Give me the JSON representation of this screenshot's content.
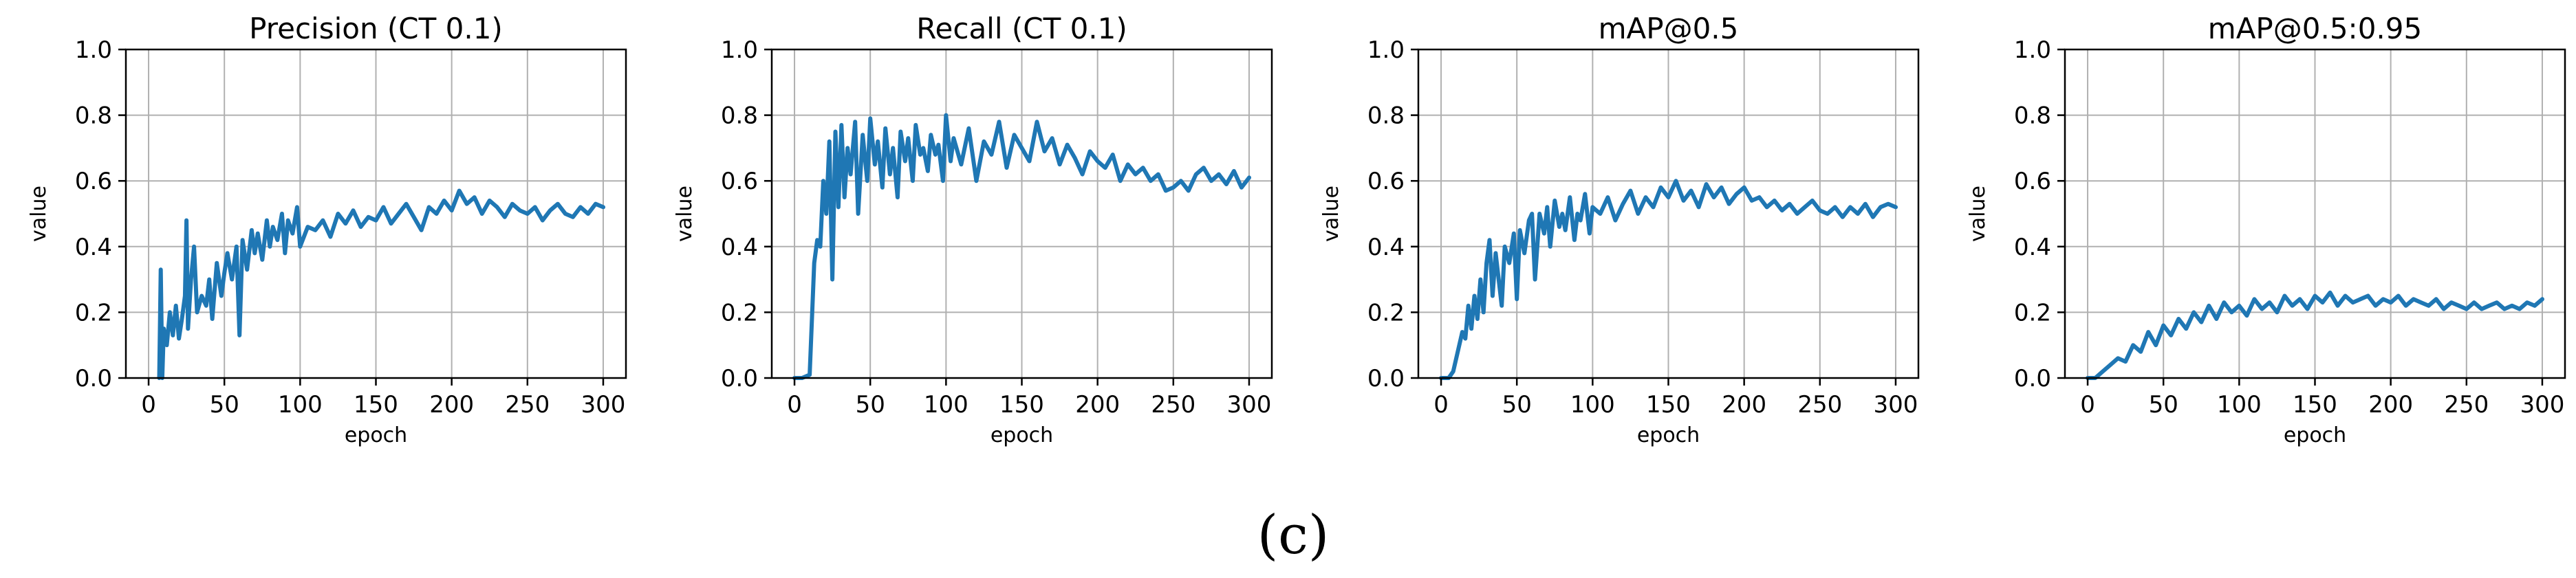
{
  "figure": {
    "caption": "(c)",
    "colors": {
      "line": "#1f77b4",
      "grid": "#b0b0b0",
      "axes": "#000000"
    }
  },
  "chart_data": [
    {
      "type": "line",
      "title": "Precision (CT 0.1)",
      "xlabel": "epoch",
      "ylabel": "value",
      "xlim": [
        -15,
        315
      ],
      "ylim": [
        0,
        1
      ],
      "xticks": [
        0,
        50,
        100,
        150,
        200,
        250,
        300
      ],
      "yticks": [
        0.0,
        0.2,
        0.4,
        0.6,
        0.8,
        1.0
      ],
      "grid": true,
      "series": [
        {
          "name": "Precision",
          "x": [
            7,
            8,
            9,
            10,
            12,
            14,
            16,
            18,
            20,
            22,
            24,
            25,
            26,
            28,
            30,
            32,
            35,
            38,
            40,
            42,
            45,
            48,
            50,
            52,
            55,
            58,
            60,
            62,
            65,
            68,
            70,
            72,
            75,
            78,
            80,
            82,
            85,
            88,
            90,
            92,
            95,
            98,
            100,
            105,
            110,
            115,
            120,
            125,
            130,
            135,
            140,
            145,
            150,
            155,
            160,
            165,
            170,
            175,
            180,
            185,
            190,
            195,
            200,
            205,
            210,
            215,
            220,
            225,
            230,
            235,
            240,
            245,
            250,
            255,
            260,
            265,
            270,
            275,
            280,
            285,
            290,
            295,
            300
          ],
          "y": [
            0.0,
            0.33,
            0.0,
            0.15,
            0.1,
            0.2,
            0.13,
            0.22,
            0.12,
            0.18,
            0.25,
            0.48,
            0.15,
            0.3,
            0.4,
            0.2,
            0.25,
            0.22,
            0.3,
            0.18,
            0.35,
            0.25,
            0.32,
            0.38,
            0.3,
            0.4,
            0.13,
            0.42,
            0.33,
            0.45,
            0.38,
            0.44,
            0.36,
            0.48,
            0.4,
            0.46,
            0.42,
            0.5,
            0.38,
            0.48,
            0.44,
            0.52,
            0.4,
            0.46,
            0.45,
            0.48,
            0.43,
            0.5,
            0.47,
            0.51,
            0.46,
            0.49,
            0.48,
            0.52,
            0.47,
            0.5,
            0.53,
            0.49,
            0.45,
            0.52,
            0.5,
            0.54,
            0.51,
            0.57,
            0.53,
            0.55,
            0.5,
            0.54,
            0.52,
            0.49,
            0.53,
            0.51,
            0.5,
            0.52,
            0.48,
            0.51,
            0.53,
            0.5,
            0.49,
            0.52,
            0.5,
            0.53,
            0.52
          ]
        }
      ]
    },
    {
      "type": "line",
      "title": "Recall (CT 0.1)",
      "xlabel": "epoch",
      "ylabel": "value",
      "xlim": [
        -15,
        315
      ],
      "ylim": [
        0,
        1
      ],
      "xticks": [
        0,
        50,
        100,
        150,
        200,
        250,
        300
      ],
      "yticks": [
        0.0,
        0.2,
        0.4,
        0.6,
        0.8,
        1.0
      ],
      "grid": true,
      "series": [
        {
          "name": "Recall",
          "x": [
            0,
            5,
            10,
            13,
            15,
            17,
            19,
            21,
            23,
            25,
            27,
            29,
            31,
            33,
            35,
            37,
            40,
            42,
            45,
            48,
            50,
            53,
            55,
            58,
            60,
            63,
            65,
            68,
            70,
            73,
            75,
            78,
            80,
            83,
            85,
            88,
            90,
            93,
            95,
            98,
            100,
            103,
            105,
            110,
            115,
            120,
            125,
            130,
            135,
            140,
            145,
            150,
            155,
            160,
            165,
            170,
            175,
            180,
            185,
            190,
            195,
            200,
            205,
            210,
            215,
            220,
            225,
            230,
            235,
            240,
            245,
            250,
            255,
            260,
            265,
            270,
            275,
            280,
            285,
            290,
            295,
            300
          ],
          "y": [
            0.0,
            0.0,
            0.01,
            0.35,
            0.42,
            0.4,
            0.6,
            0.5,
            0.72,
            0.3,
            0.75,
            0.52,
            0.77,
            0.55,
            0.7,
            0.62,
            0.78,
            0.5,
            0.74,
            0.6,
            0.79,
            0.65,
            0.72,
            0.58,
            0.76,
            0.62,
            0.7,
            0.55,
            0.75,
            0.66,
            0.73,
            0.6,
            0.77,
            0.68,
            0.7,
            0.63,
            0.74,
            0.68,
            0.71,
            0.6,
            0.8,
            0.66,
            0.73,
            0.65,
            0.76,
            0.6,
            0.72,
            0.68,
            0.78,
            0.64,
            0.74,
            0.7,
            0.66,
            0.78,
            0.69,
            0.73,
            0.65,
            0.71,
            0.67,
            0.62,
            0.69,
            0.66,
            0.64,
            0.68,
            0.6,
            0.65,
            0.62,
            0.64,
            0.6,
            0.62,
            0.57,
            0.58,
            0.6,
            0.57,
            0.62,
            0.64,
            0.6,
            0.62,
            0.59,
            0.63,
            0.58,
            0.61
          ]
        }
      ]
    },
    {
      "type": "line",
      "title": "mAP@0.5",
      "xlabel": "epoch",
      "ylabel": "value",
      "xlim": [
        -15,
        315
      ],
      "ylim": [
        0,
        1
      ],
      "xticks": [
        0,
        50,
        100,
        150,
        200,
        250,
        300
      ],
      "yticks": [
        0.0,
        0.2,
        0.4,
        0.6,
        0.8,
        1.0
      ],
      "grid": true,
      "series": [
        {
          "name": "mAP@0.5",
          "x": [
            0,
            5,
            8,
            10,
            12,
            14,
            16,
            18,
            20,
            22,
            24,
            26,
            28,
            30,
            32,
            34,
            36,
            38,
            40,
            42,
            45,
            48,
            50,
            52,
            55,
            58,
            60,
            62,
            65,
            68,
            70,
            72,
            75,
            78,
            80,
            82,
            85,
            88,
            90,
            92,
            95,
            98,
            100,
            105,
            110,
            115,
            120,
            125,
            130,
            135,
            140,
            145,
            150,
            155,
            160,
            165,
            170,
            175,
            180,
            185,
            190,
            195,
            200,
            205,
            210,
            215,
            220,
            225,
            230,
            235,
            240,
            245,
            250,
            255,
            260,
            265,
            270,
            275,
            280,
            285,
            290,
            295,
            300
          ],
          "y": [
            0.0,
            0.0,
            0.02,
            0.06,
            0.1,
            0.14,
            0.12,
            0.22,
            0.15,
            0.25,
            0.18,
            0.3,
            0.2,
            0.35,
            0.42,
            0.25,
            0.38,
            0.3,
            0.22,
            0.4,
            0.35,
            0.44,
            0.24,
            0.45,
            0.38,
            0.48,
            0.5,
            0.3,
            0.5,
            0.44,
            0.52,
            0.4,
            0.54,
            0.46,
            0.5,
            0.45,
            0.55,
            0.42,
            0.5,
            0.48,
            0.56,
            0.44,
            0.52,
            0.5,
            0.55,
            0.48,
            0.53,
            0.57,
            0.5,
            0.55,
            0.52,
            0.58,
            0.55,
            0.6,
            0.54,
            0.57,
            0.52,
            0.59,
            0.55,
            0.58,
            0.53,
            0.56,
            0.58,
            0.54,
            0.55,
            0.52,
            0.54,
            0.51,
            0.53,
            0.5,
            0.52,
            0.54,
            0.51,
            0.5,
            0.52,
            0.49,
            0.52,
            0.5,
            0.53,
            0.49,
            0.52,
            0.53,
            0.52
          ]
        }
      ]
    },
    {
      "type": "line",
      "title": "mAP@0.5:0.95",
      "xlabel": "epoch",
      "ylabel": "value",
      "xlim": [
        -15,
        315
      ],
      "ylim": [
        0,
        1
      ],
      "xticks": [
        0,
        50,
        100,
        150,
        200,
        250,
        300
      ],
      "yticks": [
        0.0,
        0.2,
        0.4,
        0.6,
        0.8,
        1.0
      ],
      "grid": true,
      "series": [
        {
          "name": "mAP@0.5:0.95",
          "x": [
            0,
            5,
            10,
            15,
            20,
            25,
            30,
            35,
            40,
            45,
            50,
            55,
            60,
            65,
            70,
            75,
            80,
            85,
            90,
            95,
            100,
            105,
            110,
            115,
            120,
            125,
            130,
            135,
            140,
            145,
            150,
            155,
            160,
            165,
            170,
            175,
            180,
            185,
            190,
            195,
            200,
            205,
            210,
            215,
            220,
            225,
            230,
            235,
            240,
            245,
            250,
            255,
            260,
            265,
            270,
            275,
            280,
            285,
            290,
            295,
            300
          ],
          "y": [
            0.0,
            0.0,
            0.02,
            0.04,
            0.06,
            0.05,
            0.1,
            0.08,
            0.14,
            0.1,
            0.16,
            0.13,
            0.18,
            0.15,
            0.2,
            0.17,
            0.22,
            0.18,
            0.23,
            0.2,
            0.22,
            0.19,
            0.24,
            0.21,
            0.23,
            0.2,
            0.25,
            0.22,
            0.24,
            0.21,
            0.25,
            0.23,
            0.26,
            0.22,
            0.25,
            0.23,
            0.24,
            0.25,
            0.22,
            0.24,
            0.23,
            0.25,
            0.22,
            0.24,
            0.23,
            0.22,
            0.24,
            0.21,
            0.23,
            0.22,
            0.21,
            0.23,
            0.21,
            0.22,
            0.23,
            0.21,
            0.22,
            0.21,
            0.23,
            0.22,
            0.24
          ]
        }
      ]
    }
  ]
}
